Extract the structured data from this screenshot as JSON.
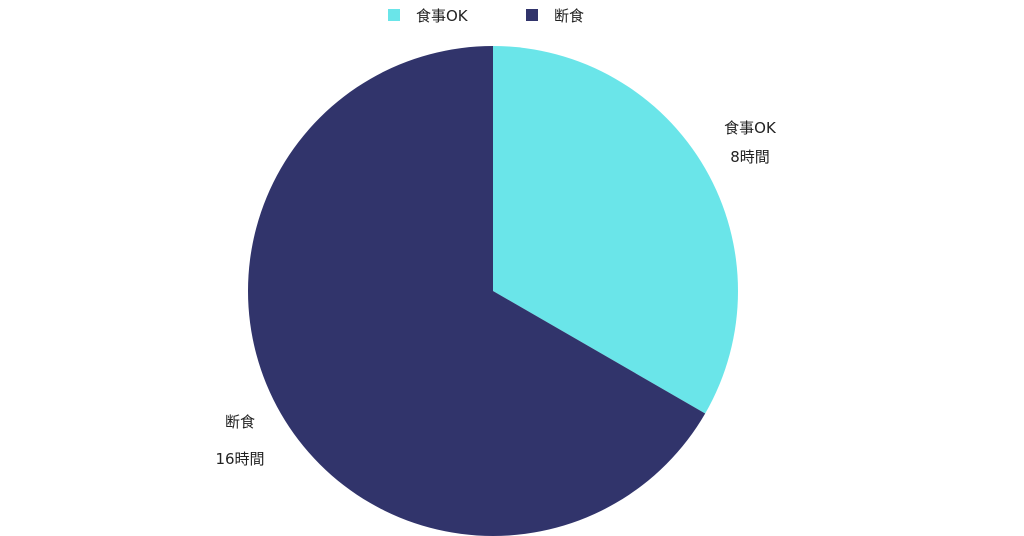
{
  "chart_data": {
    "type": "pie",
    "legend_position": "top",
    "categories": [
      "食事OK",
      "断食"
    ],
    "values": [
      8,
      16
    ],
    "value_labels": [
      "8時間",
      "16時間"
    ],
    "colors": [
      "#6ae5e9",
      "#31346b"
    ],
    "start_angle": "12 o'clock",
    "direction": "clockwise"
  }
}
